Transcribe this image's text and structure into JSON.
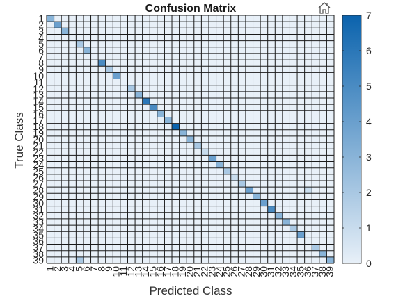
{
  "toolbar": {
    "home_icon": "home-icon"
  },
  "chart_data": {
    "type": "heatmap",
    "title": "Confusion Matrix",
    "xlabel": "Predicted Class",
    "ylabel": "True Class",
    "labels": [
      "1",
      "2",
      "3",
      "4",
      "5",
      "6",
      "7",
      "8",
      "9",
      "10",
      "11",
      "12",
      "13",
      "14",
      "15",
      "16",
      "17",
      "18",
      "19",
      "20",
      "21",
      "22",
      "23",
      "24",
      "25",
      "26",
      "27",
      "28",
      "29",
      "30",
      "31",
      "32",
      "33",
      "34",
      "35",
      "36",
      "37",
      "38",
      "39"
    ],
    "colorbar": {
      "min": 0,
      "max": 7,
      "ticks": [
        0,
        1,
        2,
        3,
        4,
        5,
        6,
        7
      ]
    },
    "colormap": {
      "low": "#e8f0f8",
      "high": "#0b63ad"
    },
    "grid": true,
    "nonzero_cells": [
      {
        "true": "1",
        "pred": "1",
        "value": 3
      },
      {
        "true": "2",
        "pred": "2",
        "value": 4
      },
      {
        "true": "3",
        "pred": "3",
        "value": 3
      },
      {
        "true": "5",
        "pred": "5",
        "value": 2
      },
      {
        "true": "6",
        "pred": "6",
        "value": 3
      },
      {
        "true": "8",
        "pred": "8",
        "value": 5
      },
      {
        "true": "9",
        "pred": "9",
        "value": 2
      },
      {
        "true": "10",
        "pred": "10",
        "value": 4
      },
      {
        "true": "12",
        "pred": "12",
        "value": 2
      },
      {
        "true": "13",
        "pred": "13",
        "value": 3
      },
      {
        "true": "14",
        "pred": "14",
        "value": 6
      },
      {
        "true": "15",
        "pred": "15",
        "value": 5
      },
      {
        "true": "16",
        "pred": "16",
        "value": 3
      },
      {
        "true": "17",
        "pred": "17",
        "value": 3
      },
      {
        "true": "18",
        "pred": "18",
        "value": 7
      },
      {
        "true": "19",
        "pred": "19",
        "value": 3
      },
      {
        "true": "20",
        "pred": "20",
        "value": 3
      },
      {
        "true": "21",
        "pred": "21",
        "value": 2
      },
      {
        "true": "22",
        "pred": "22",
        "value": 1
      },
      {
        "true": "23",
        "pred": "23",
        "value": 4
      },
      {
        "true": "24",
        "pred": "24",
        "value": 3
      },
      {
        "true": "25",
        "pred": "25",
        "value": 2
      },
      {
        "true": "26",
        "pred": "26",
        "value": 1
      },
      {
        "true": "27",
        "pred": "27",
        "value": 2
      },
      {
        "true": "28",
        "pred": "28",
        "value": 4
      },
      {
        "true": "28",
        "pred": "36",
        "value": 1
      },
      {
        "true": "29",
        "pred": "29",
        "value": 3
      },
      {
        "true": "30",
        "pred": "30",
        "value": 4
      },
      {
        "true": "31",
        "pred": "31",
        "value": 5
      },
      {
        "true": "32",
        "pred": "32",
        "value": 3
      },
      {
        "true": "33",
        "pred": "33",
        "value": 3
      },
      {
        "true": "34",
        "pred": "34",
        "value": 2
      },
      {
        "true": "35",
        "pred": "35",
        "value": 4
      },
      {
        "true": "37",
        "pred": "37",
        "value": 2
      },
      {
        "true": "38",
        "pred": "38",
        "value": 3
      },
      {
        "true": "39",
        "pred": "5",
        "value": 2
      },
      {
        "true": "39",
        "pred": "39",
        "value": 3
      }
    ]
  }
}
